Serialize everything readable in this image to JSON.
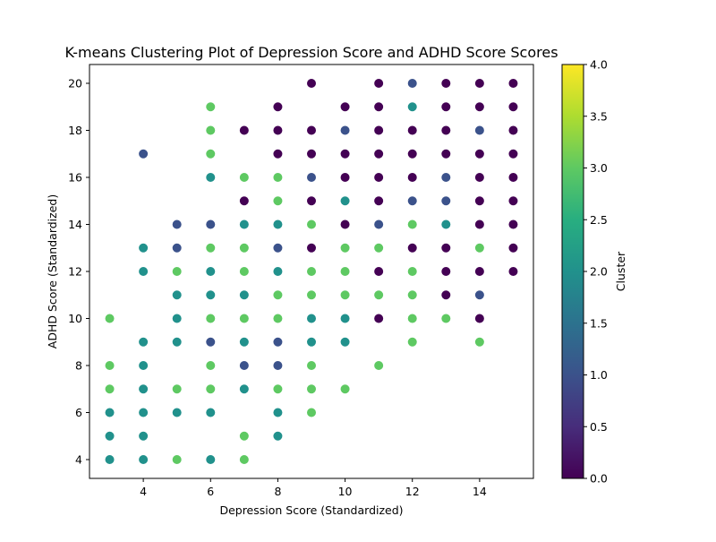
{
  "chart_data": {
    "type": "scatter",
    "title": "K-means Clustering Plot of Depression Score and ADHD Score Scores",
    "xlabel": "Depression Score (Standardized)",
    "ylabel": "ADHD Score (Standardized)",
    "xlim": [
      2.4,
      15.6
    ],
    "ylim": [
      3.2,
      20.8
    ],
    "xticks": [
      "4",
      "6",
      "8",
      "10",
      "12",
      "14"
    ],
    "yticks": [
      "4",
      "6",
      "8",
      "10",
      "12",
      "14",
      "16",
      "18",
      "20"
    ],
    "colorbar": {
      "label": "Cluster",
      "range": [
        0,
        4
      ],
      "ticks": [
        "0.0",
        "0.5",
        "1.0",
        "1.5",
        "2.0",
        "2.5",
        "3.0",
        "3.5",
        "4.0"
      ],
      "colormap": "viridis"
    },
    "grid": false,
    "points": [
      {
        "x": 3,
        "y": 10,
        "cluster": 3
      },
      {
        "x": 3,
        "y": 8,
        "cluster": 3
      },
      {
        "x": 3,
        "y": 7,
        "cluster": 3
      },
      {
        "x": 3,
        "y": 6,
        "cluster": 2
      },
      {
        "x": 3,
        "y": 5,
        "cluster": 2
      },
      {
        "x": 3,
        "y": 4,
        "cluster": 2
      },
      {
        "x": 4,
        "y": 17,
        "cluster": 1
      },
      {
        "x": 4,
        "y": 13,
        "cluster": 2
      },
      {
        "x": 4,
        "y": 12,
        "cluster": 2
      },
      {
        "x": 4,
        "y": 9,
        "cluster": 2
      },
      {
        "x": 4,
        "y": 8,
        "cluster": 2
      },
      {
        "x": 4,
        "y": 7,
        "cluster": 2
      },
      {
        "x": 4,
        "y": 6,
        "cluster": 2
      },
      {
        "x": 4,
        "y": 5,
        "cluster": 2
      },
      {
        "x": 4,
        "y": 4,
        "cluster": 2
      },
      {
        "x": 5,
        "y": 14,
        "cluster": 1
      },
      {
        "x": 5,
        "y": 13,
        "cluster": 1
      },
      {
        "x": 5,
        "y": 12,
        "cluster": 3
      },
      {
        "x": 5,
        "y": 11,
        "cluster": 2
      },
      {
        "x": 5,
        "y": 10,
        "cluster": 2
      },
      {
        "x": 5,
        "y": 9,
        "cluster": 2
      },
      {
        "x": 5,
        "y": 7,
        "cluster": 3
      },
      {
        "x": 5,
        "y": 6,
        "cluster": 2
      },
      {
        "x": 5,
        "y": 4,
        "cluster": 3
      },
      {
        "x": 6,
        "y": 19,
        "cluster": 3
      },
      {
        "x": 6,
        "y": 18,
        "cluster": 3
      },
      {
        "x": 6,
        "y": 17,
        "cluster": 3
      },
      {
        "x": 6,
        "y": 16,
        "cluster": 2
      },
      {
        "x": 6,
        "y": 14,
        "cluster": 1
      },
      {
        "x": 6,
        "y": 13,
        "cluster": 3
      },
      {
        "x": 6,
        "y": 12,
        "cluster": 2
      },
      {
        "x": 6,
        "y": 11,
        "cluster": 2
      },
      {
        "x": 6,
        "y": 10,
        "cluster": 3
      },
      {
        "x": 6,
        "y": 9,
        "cluster": 1
      },
      {
        "x": 6,
        "y": 8,
        "cluster": 3
      },
      {
        "x": 6,
        "y": 7,
        "cluster": 3
      },
      {
        "x": 6,
        "y": 6,
        "cluster": 2
      },
      {
        "x": 6,
        "y": 4,
        "cluster": 2
      },
      {
        "x": 7,
        "y": 18,
        "cluster": 0
      },
      {
        "x": 7,
        "y": 16,
        "cluster": 3
      },
      {
        "x": 7,
        "y": 15,
        "cluster": 0
      },
      {
        "x": 7,
        "y": 14,
        "cluster": 2
      },
      {
        "x": 7,
        "y": 13,
        "cluster": 3
      },
      {
        "x": 7,
        "y": 12,
        "cluster": 3
      },
      {
        "x": 7,
        "y": 11,
        "cluster": 2
      },
      {
        "x": 7,
        "y": 10,
        "cluster": 3
      },
      {
        "x": 7,
        "y": 9,
        "cluster": 2
      },
      {
        "x": 7,
        "y": 8,
        "cluster": 1
      },
      {
        "x": 7,
        "y": 7,
        "cluster": 2
      },
      {
        "x": 7,
        "y": 5,
        "cluster": 3
      },
      {
        "x": 7,
        "y": 4,
        "cluster": 3
      },
      {
        "x": 8,
        "y": 19,
        "cluster": 0
      },
      {
        "x": 8,
        "y": 18,
        "cluster": 0
      },
      {
        "x": 8,
        "y": 17,
        "cluster": 0
      },
      {
        "x": 8,
        "y": 16,
        "cluster": 3
      },
      {
        "x": 8,
        "y": 15,
        "cluster": 3
      },
      {
        "x": 8,
        "y": 14,
        "cluster": 2
      },
      {
        "x": 8,
        "y": 13,
        "cluster": 1
      },
      {
        "x": 8,
        "y": 12,
        "cluster": 2
      },
      {
        "x": 8,
        "y": 11,
        "cluster": 3
      },
      {
        "x": 8,
        "y": 10,
        "cluster": 3
      },
      {
        "x": 8,
        "y": 9,
        "cluster": 1
      },
      {
        "x": 8,
        "y": 8,
        "cluster": 1
      },
      {
        "x": 8,
        "y": 7,
        "cluster": 3
      },
      {
        "x": 8,
        "y": 6,
        "cluster": 2
      },
      {
        "x": 8,
        "y": 5,
        "cluster": 2
      },
      {
        "x": 9,
        "y": 20,
        "cluster": 0
      },
      {
        "x": 9,
        "y": 18,
        "cluster": 0
      },
      {
        "x": 9,
        "y": 17,
        "cluster": 0
      },
      {
        "x": 9,
        "y": 16,
        "cluster": 1
      },
      {
        "x": 9,
        "y": 15,
        "cluster": 0
      },
      {
        "x": 9,
        "y": 14,
        "cluster": 3
      },
      {
        "x": 9,
        "y": 13,
        "cluster": 0
      },
      {
        "x": 9,
        "y": 12,
        "cluster": 3
      },
      {
        "x": 9,
        "y": 11,
        "cluster": 3
      },
      {
        "x": 9,
        "y": 10,
        "cluster": 2
      },
      {
        "x": 9,
        "y": 9,
        "cluster": 2
      },
      {
        "x": 9,
        "y": 8,
        "cluster": 3
      },
      {
        "x": 9,
        "y": 7,
        "cluster": 3
      },
      {
        "x": 9,
        "y": 6,
        "cluster": 3
      },
      {
        "x": 10,
        "y": 19,
        "cluster": 0
      },
      {
        "x": 10,
        "y": 18,
        "cluster": 1
      },
      {
        "x": 10,
        "y": 17,
        "cluster": 0
      },
      {
        "x": 10,
        "y": 16,
        "cluster": 0
      },
      {
        "x": 10,
        "y": 15,
        "cluster": 2
      },
      {
        "x": 10,
        "y": 14,
        "cluster": 0
      },
      {
        "x": 10,
        "y": 13,
        "cluster": 3
      },
      {
        "x": 10,
        "y": 12,
        "cluster": 3
      },
      {
        "x": 10,
        "y": 11,
        "cluster": 3
      },
      {
        "x": 10,
        "y": 10,
        "cluster": 2
      },
      {
        "x": 10,
        "y": 9,
        "cluster": 2
      },
      {
        "x": 10,
        "y": 7,
        "cluster": 3
      },
      {
        "x": 11,
        "y": 20,
        "cluster": 0
      },
      {
        "x": 11,
        "y": 19,
        "cluster": 0
      },
      {
        "x": 11,
        "y": 18,
        "cluster": 0
      },
      {
        "x": 11,
        "y": 17,
        "cluster": 0
      },
      {
        "x": 11,
        "y": 16,
        "cluster": 0
      },
      {
        "x": 11,
        "y": 15,
        "cluster": 0
      },
      {
        "x": 11,
        "y": 14,
        "cluster": 1
      },
      {
        "x": 11,
        "y": 13,
        "cluster": 3
      },
      {
        "x": 11,
        "y": 12,
        "cluster": 0
      },
      {
        "x": 11,
        "y": 11,
        "cluster": 3
      },
      {
        "x": 11,
        "y": 10,
        "cluster": 0
      },
      {
        "x": 11,
        "y": 8,
        "cluster": 3
      },
      {
        "x": 12,
        "y": 20,
        "cluster": 1
      },
      {
        "x": 12,
        "y": 19,
        "cluster": 2
      },
      {
        "x": 12,
        "y": 18,
        "cluster": 0
      },
      {
        "x": 12,
        "y": 17,
        "cluster": 0
      },
      {
        "x": 12,
        "y": 16,
        "cluster": 0
      },
      {
        "x": 12,
        "y": 15,
        "cluster": 1
      },
      {
        "x": 12,
        "y": 14,
        "cluster": 3
      },
      {
        "x": 12,
        "y": 13,
        "cluster": 0
      },
      {
        "x": 12,
        "y": 12,
        "cluster": 3
      },
      {
        "x": 12,
        "y": 11,
        "cluster": 3
      },
      {
        "x": 12,
        "y": 10,
        "cluster": 3
      },
      {
        "x": 12,
        "y": 9,
        "cluster": 3
      },
      {
        "x": 13,
        "y": 20,
        "cluster": 0
      },
      {
        "x": 13,
        "y": 19,
        "cluster": 0
      },
      {
        "x": 13,
        "y": 18,
        "cluster": 0
      },
      {
        "x": 13,
        "y": 17,
        "cluster": 0
      },
      {
        "x": 13,
        "y": 16,
        "cluster": 1
      },
      {
        "x": 13,
        "y": 15,
        "cluster": 1
      },
      {
        "x": 13,
        "y": 14,
        "cluster": 2
      },
      {
        "x": 13,
        "y": 13,
        "cluster": 0
      },
      {
        "x": 13,
        "y": 12,
        "cluster": 0
      },
      {
        "x": 13,
        "y": 11,
        "cluster": 0
      },
      {
        "x": 13,
        "y": 10,
        "cluster": 3
      },
      {
        "x": 14,
        "y": 20,
        "cluster": 0
      },
      {
        "x": 14,
        "y": 19,
        "cluster": 0
      },
      {
        "x": 14,
        "y": 18,
        "cluster": 1
      },
      {
        "x": 14,
        "y": 17,
        "cluster": 0
      },
      {
        "x": 14,
        "y": 16,
        "cluster": 0
      },
      {
        "x": 14,
        "y": 15,
        "cluster": 0
      },
      {
        "x": 14,
        "y": 14,
        "cluster": 0
      },
      {
        "x": 14,
        "y": 13,
        "cluster": 3
      },
      {
        "x": 14,
        "y": 12,
        "cluster": 0
      },
      {
        "x": 14,
        "y": 11,
        "cluster": 1
      },
      {
        "x": 14,
        "y": 10,
        "cluster": 0
      },
      {
        "x": 14,
        "y": 9,
        "cluster": 3
      },
      {
        "x": 15,
        "y": 20,
        "cluster": 0
      },
      {
        "x": 15,
        "y": 19,
        "cluster": 0
      },
      {
        "x": 15,
        "y": 18,
        "cluster": 0
      },
      {
        "x": 15,
        "y": 17,
        "cluster": 0
      },
      {
        "x": 15,
        "y": 16,
        "cluster": 0
      },
      {
        "x": 15,
        "y": 15,
        "cluster": 0
      },
      {
        "x": 15,
        "y": 14,
        "cluster": 0
      },
      {
        "x": 15,
        "y": 13,
        "cluster": 0
      },
      {
        "x": 15,
        "y": 12,
        "cluster": 0
      }
    ]
  },
  "colors": {
    "cluster_0": "#440154",
    "cluster_1": "#3b528b",
    "cluster_2": "#21918c",
    "cluster_3": "#5ec962",
    "cluster_4": "#fde725"
  }
}
